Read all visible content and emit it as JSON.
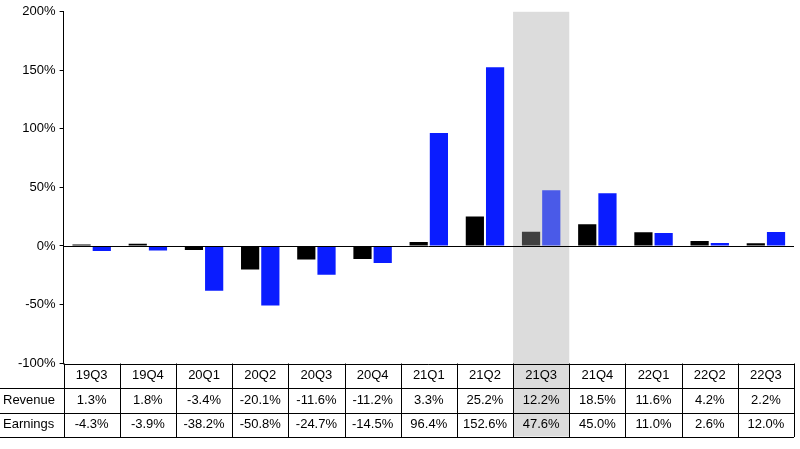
{
  "chart_data": {
    "type": "bar",
    "categories": [
      "19Q3",
      "19Q4",
      "20Q1",
      "20Q2",
      "20Q3",
      "20Q4",
      "21Q1",
      "21Q2",
      "21Q3",
      "21Q4",
      "22Q1",
      "22Q2",
      "22Q3"
    ],
    "series": [
      {
        "name": "Revenue",
        "colors": [
          "#000000",
          "#000000",
          "#000000",
          "#000000",
          "#000000",
          "#000000",
          "#000000",
          "#000000",
          "#404040",
          "#000000",
          "#000000",
          "#000000",
          "#000000"
        ],
        "values": [
          1.3,
          1.8,
          -3.4,
          -20.1,
          -11.6,
          -11.2,
          3.3,
          25.2,
          12.2,
          18.5,
          11.6,
          4.2,
          2.2
        ],
        "value_labels": [
          "1.3%",
          "1.8%",
          "-3.4%",
          "-20.1%",
          "-11.6%",
          "-11.2%",
          "3.3%",
          "25.2%",
          "12.2%",
          "18.5%",
          "11.6%",
          "4.2%",
          "2.2%"
        ]
      },
      {
        "name": "Earnings",
        "colors": [
          "#0a1cff",
          "#0a1cff",
          "#0a1cff",
          "#0a1cff",
          "#0a1cff",
          "#0a1cff",
          "#0a1cff",
          "#0a1cff",
          "#4a5ae8",
          "#0a1cff",
          "#0a1cff",
          "#0a1cff",
          "#0a1cff"
        ],
        "values": [
          -4.3,
          -3.9,
          -38.2,
          -50.8,
          -24.7,
          -14.5,
          96.4,
          152.6,
          47.6,
          45.0,
          11.0,
          2.6,
          12.0
        ],
        "value_labels": [
          "-4.3%",
          "-3.9%",
          "-38.2%",
          "-50.8%",
          "-24.7%",
          "-14.5%",
          "96.4%",
          "152.6%",
          "47.6%",
          "45.0%",
          "11.0%",
          "2.6%",
          "12.0%"
        ]
      }
    ],
    "ylim": [
      -100,
      200
    ],
    "yticks": [
      {
        "value": -100,
        "label": "-100%"
      },
      {
        "value": -50,
        "label": "-50%"
      },
      {
        "value": 0,
        "label": "0%"
      },
      {
        "value": 50,
        "label": "50%"
      },
      {
        "value": 100,
        "label": "100%"
      },
      {
        "value": 150,
        "label": "150%"
      },
      {
        "value": 200,
        "label": "200%"
      }
    ],
    "grid": false
  }
}
